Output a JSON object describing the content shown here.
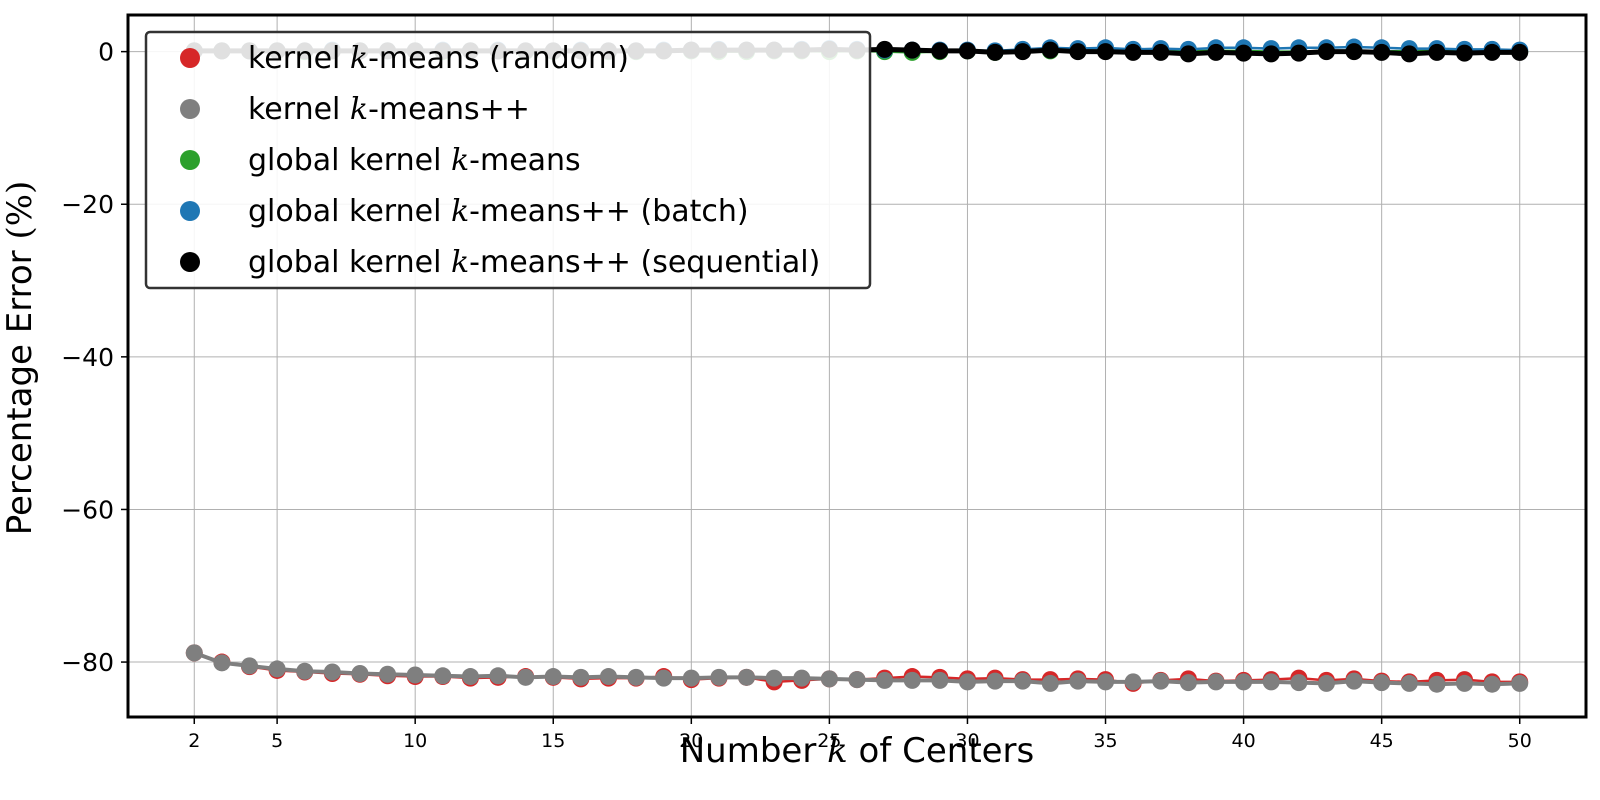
{
  "chart_data": {
    "type": "line",
    "title": "",
    "xlabel": "Number k of Centers",
    "ylabel": "Percentage Error (%)",
    "xlim": [
      -0.4,
      52.4
    ],
    "ylim": [
      -87.2,
      4.8
    ],
    "xticks": [
      2,
      5,
      10,
      15,
      20,
      25,
      30,
      35,
      40,
      45,
      50
    ],
    "yticks": [
      0,
      -20,
      -40,
      -60,
      -80
    ],
    "xtick_labels": [
      "2",
      "5",
      "10",
      "15",
      "20",
      "25",
      "30",
      "35",
      "40",
      "45",
      "50"
    ],
    "ytick_labels": [
      "0",
      "−20",
      "−40",
      "−60",
      "−80"
    ],
    "grid": true,
    "legend_position": "top-left",
    "x": [
      2,
      3,
      4,
      5,
      6,
      7,
      8,
      9,
      10,
      11,
      12,
      13,
      14,
      15,
      16,
      17,
      18,
      19,
      20,
      21,
      22,
      23,
      24,
      25,
      26,
      27,
      28,
      29,
      30,
      31,
      32,
      33,
      34,
      35,
      36,
      37,
      38,
      39,
      40,
      41,
      42,
      43,
      44,
      45,
      46,
      47,
      48,
      49,
      50
    ],
    "series": [
      {
        "name": "kernel k-means (random)",
        "color": "#d62728",
        "values": [
          -78.8,
          -80.0,
          -80.6,
          -81.1,
          -81.3,
          -81.5,
          -81.6,
          -81.8,
          -81.9,
          -81.9,
          -82.1,
          -82.0,
          -81.9,
          -82.0,
          -82.2,
          -82.1,
          -82.1,
          -81.9,
          -82.3,
          -82.1,
          -82.0,
          -82.6,
          -82.4,
          -82.2,
          -82.3,
          -82.1,
          -81.9,
          -82.0,
          -82.2,
          -82.1,
          -82.3,
          -82.3,
          -82.2,
          -82.3,
          -82.8,
          -82.4,
          -82.2,
          -82.5,
          -82.4,
          -82.3,
          -82.1,
          -82.4,
          -82.2,
          -82.5,
          -82.6,
          -82.4,
          -82.3,
          -82.6,
          -82.6
        ]
      },
      {
        "name": "kernel k-means++",
        "color": "#7f7f7f",
        "values": [
          -78.8,
          -80.1,
          -80.5,
          -80.9,
          -81.2,
          -81.3,
          -81.5,
          -81.6,
          -81.7,
          -81.8,
          -81.9,
          -81.8,
          -82.0,
          -81.9,
          -82.0,
          -81.9,
          -82.0,
          -82.1,
          -82.1,
          -82.0,
          -82.0,
          -82.1,
          -82.1,
          -82.2,
          -82.3,
          -82.4,
          -82.4,
          -82.4,
          -82.6,
          -82.5,
          -82.5,
          -82.8,
          -82.5,
          -82.6,
          -82.6,
          -82.5,
          -82.7,
          -82.6,
          -82.6,
          -82.6,
          -82.7,
          -82.8,
          -82.5,
          -82.7,
          -82.8,
          -82.9,
          -82.8,
          -82.9,
          -82.8
        ]
      },
      {
        "name": "global kernel k-means",
        "color": "#2ca02c",
        "values": [
          0.1,
          0.1,
          0.1,
          0.1,
          0.0,
          0.1,
          0.1,
          0.1,
          0.1,
          0.0,
          0.1,
          0.1,
          0.0,
          0.0,
          0.1,
          0.0,
          0.0,
          0.1,
          0.1,
          0.0,
          0.0,
          0.1,
          0.1,
          0.0,
          0.1,
          0.0,
          -0.1,
          0.0,
          0.1,
          -0.1,
          0.2,
          0.1,
          0.1,
          0.1,
          0.1,
          0.0,
          0.1,
          0.1,
          0.1,
          0.0,
          0.0,
          0.1,
          0.1,
          0.0,
          0.1,
          0.1,
          0.1,
          0.0,
          0.0
        ]
      },
      {
        "name": "global kernel k-means++ (batch)",
        "color": "#1f77b4",
        "values": [
          0.1,
          0.1,
          0.1,
          0.1,
          0.1,
          0.2,
          0.1,
          0.1,
          0.1,
          0.2,
          0.1,
          0.2,
          0.1,
          0.1,
          0.2,
          0.1,
          0.1,
          0.2,
          0.2,
          0.3,
          0.2,
          0.2,
          0.3,
          0.4,
          0.3,
          0.2,
          0.2,
          0.2,
          0.2,
          0.1,
          0.3,
          0.5,
          0.4,
          0.5,
          0.3,
          0.4,
          0.3,
          0.5,
          0.5,
          0.4,
          0.5,
          0.5,
          0.6,
          0.5,
          0.4,
          0.4,
          0.3,
          0.3,
          0.2
        ]
      },
      {
        "name": "global kernel k-means++ (sequential)",
        "color": "#000000",
        "values": [
          0.1,
          0.1,
          0.1,
          0.1,
          0.1,
          0.1,
          0.1,
          0.1,
          0.1,
          0.1,
          0.1,
          0.1,
          0.1,
          0.1,
          0.1,
          0.1,
          0.1,
          0.1,
          0.2,
          0.2,
          0.2,
          0.2,
          0.2,
          0.3,
          0.2,
          0.3,
          0.2,
          0.1,
          0.1,
          -0.1,
          0.0,
          0.2,
          0.0,
          0.0,
          -0.1,
          -0.1,
          -0.3,
          -0.1,
          -0.2,
          -0.3,
          -0.2,
          0.0,
          0.0,
          -0.1,
          -0.3,
          -0.1,
          -0.2,
          -0.1,
          -0.1
        ]
      }
    ],
    "legend_labels": [
      [
        "kernel ",
        "k",
        "-means (random)"
      ],
      [
        "kernel ",
        "k",
        "-means++"
      ],
      [
        "global kernel ",
        "k",
        "-means"
      ],
      [
        "global kernel ",
        "k",
        "-means++ (batch)"
      ],
      [
        "global kernel ",
        "k",
        "-means++ (sequential)"
      ]
    ],
    "xlabel_parts": [
      "Number ",
      "k",
      " of Centers"
    ],
    "ylabel_parts": [
      "Percentage Error ",
      "(%)"
    ],
    "notes_colors": {
      "grid": "#b0b0b0",
      "axes": "#000000",
      "legend_border": "#333333",
      "overlay_points_light": "#d9d9d9"
    }
  }
}
